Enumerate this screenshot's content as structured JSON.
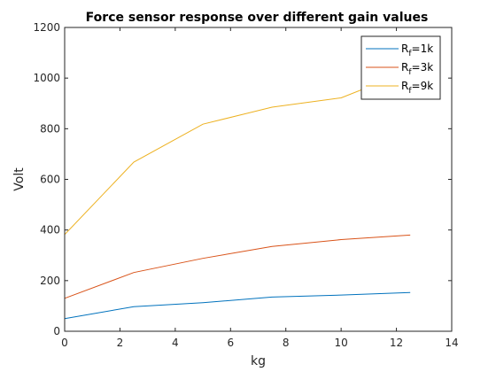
{
  "chart_data": {
    "type": "line",
    "title": "Force sensor response over different gain values",
    "xlabel": "kg",
    "ylabel": "Volt",
    "xlim": [
      0,
      14
    ],
    "ylim": [
      0,
      1200
    ],
    "xticks": [
      0,
      2,
      4,
      6,
      8,
      10,
      12,
      14
    ],
    "yticks": [
      0,
      200,
      400,
      600,
      800,
      1000,
      1200
    ],
    "grid": false,
    "legend_position": "top-right",
    "x": [
      0,
      2.5,
      5,
      7.5,
      10,
      12.5
    ],
    "series": [
      {
        "name_main": "R",
        "name_sub": "f",
        "name_rest": "=1k",
        "color": "#0072BD",
        "values": [
          50,
          97,
          113,
          135,
          143,
          153
        ]
      },
      {
        "name_main": "R",
        "name_sub": "f",
        "name_rest": "=3k",
        "color": "#D95319",
        "values": [
          130,
          232,
          288,
          335,
          362,
          380
        ]
      },
      {
        "name_main": "R",
        "name_sub": "f",
        "name_rest": "=9k",
        "color": "#EDB120",
        "values": [
          382,
          668,
          818,
          885,
          922,
          1030
        ]
      }
    ]
  }
}
